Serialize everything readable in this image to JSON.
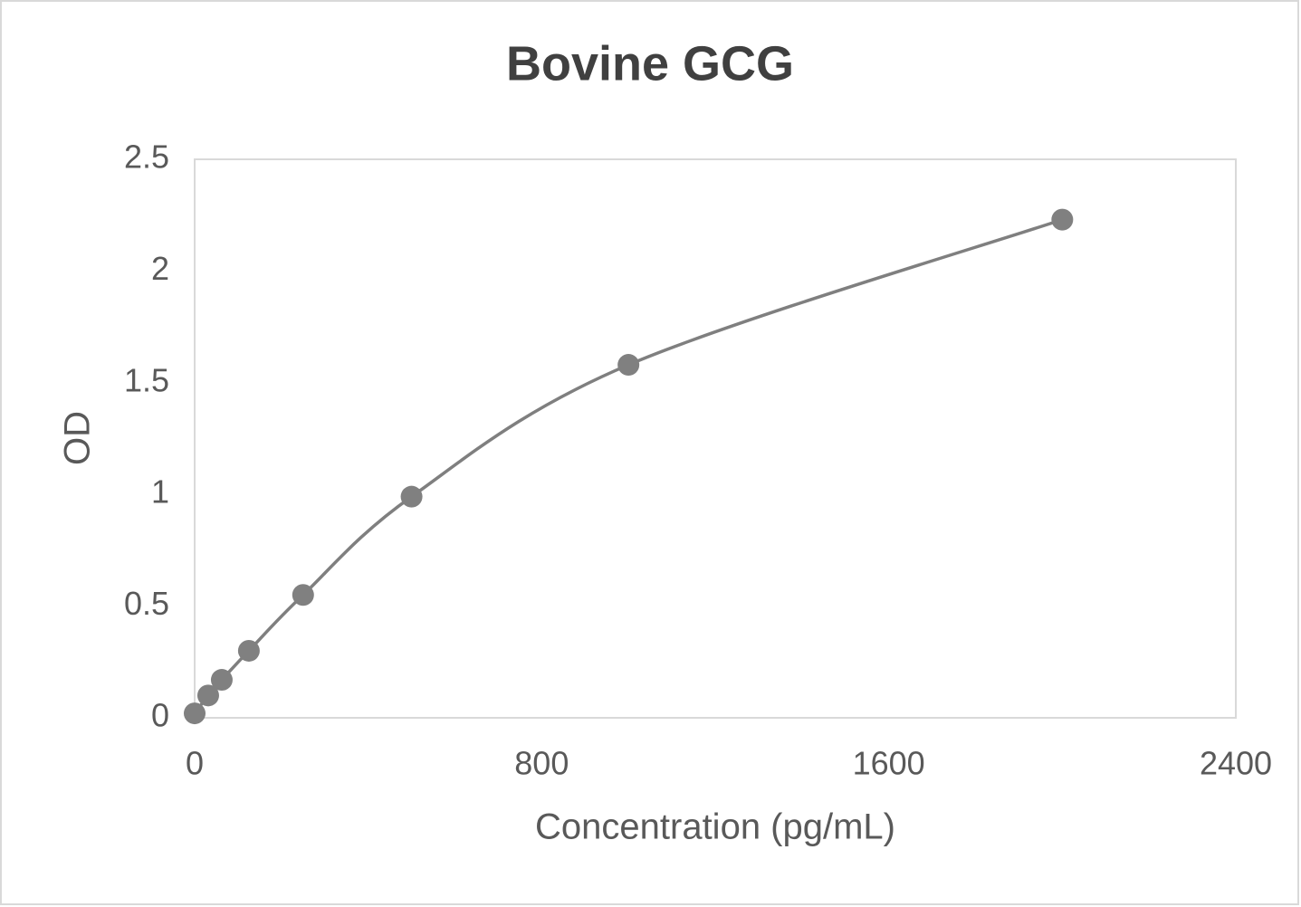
{
  "chart_data": {
    "type": "scatter",
    "title": "Bovine GCG",
    "x_label": "Concentration (pg/mL)",
    "y_label": "OD",
    "x": [
      0,
      31.25,
      62.5,
      125,
      250,
      500,
      1000,
      2000
    ],
    "values": [
      0.02,
      0.1,
      0.17,
      0.3,
      0.55,
      0.99,
      1.58,
      2.23
    ],
    "color": "#808080",
    "smooth": true,
    "xlim": [
      0,
      2400
    ],
    "xticks": [
      0,
      800,
      1600,
      2400
    ],
    "ylim": [
      0,
      2.5
    ],
    "yticks": [
      0,
      0.5,
      1,
      1.5,
      2,
      2.5
    ],
    "grid": false
  }
}
